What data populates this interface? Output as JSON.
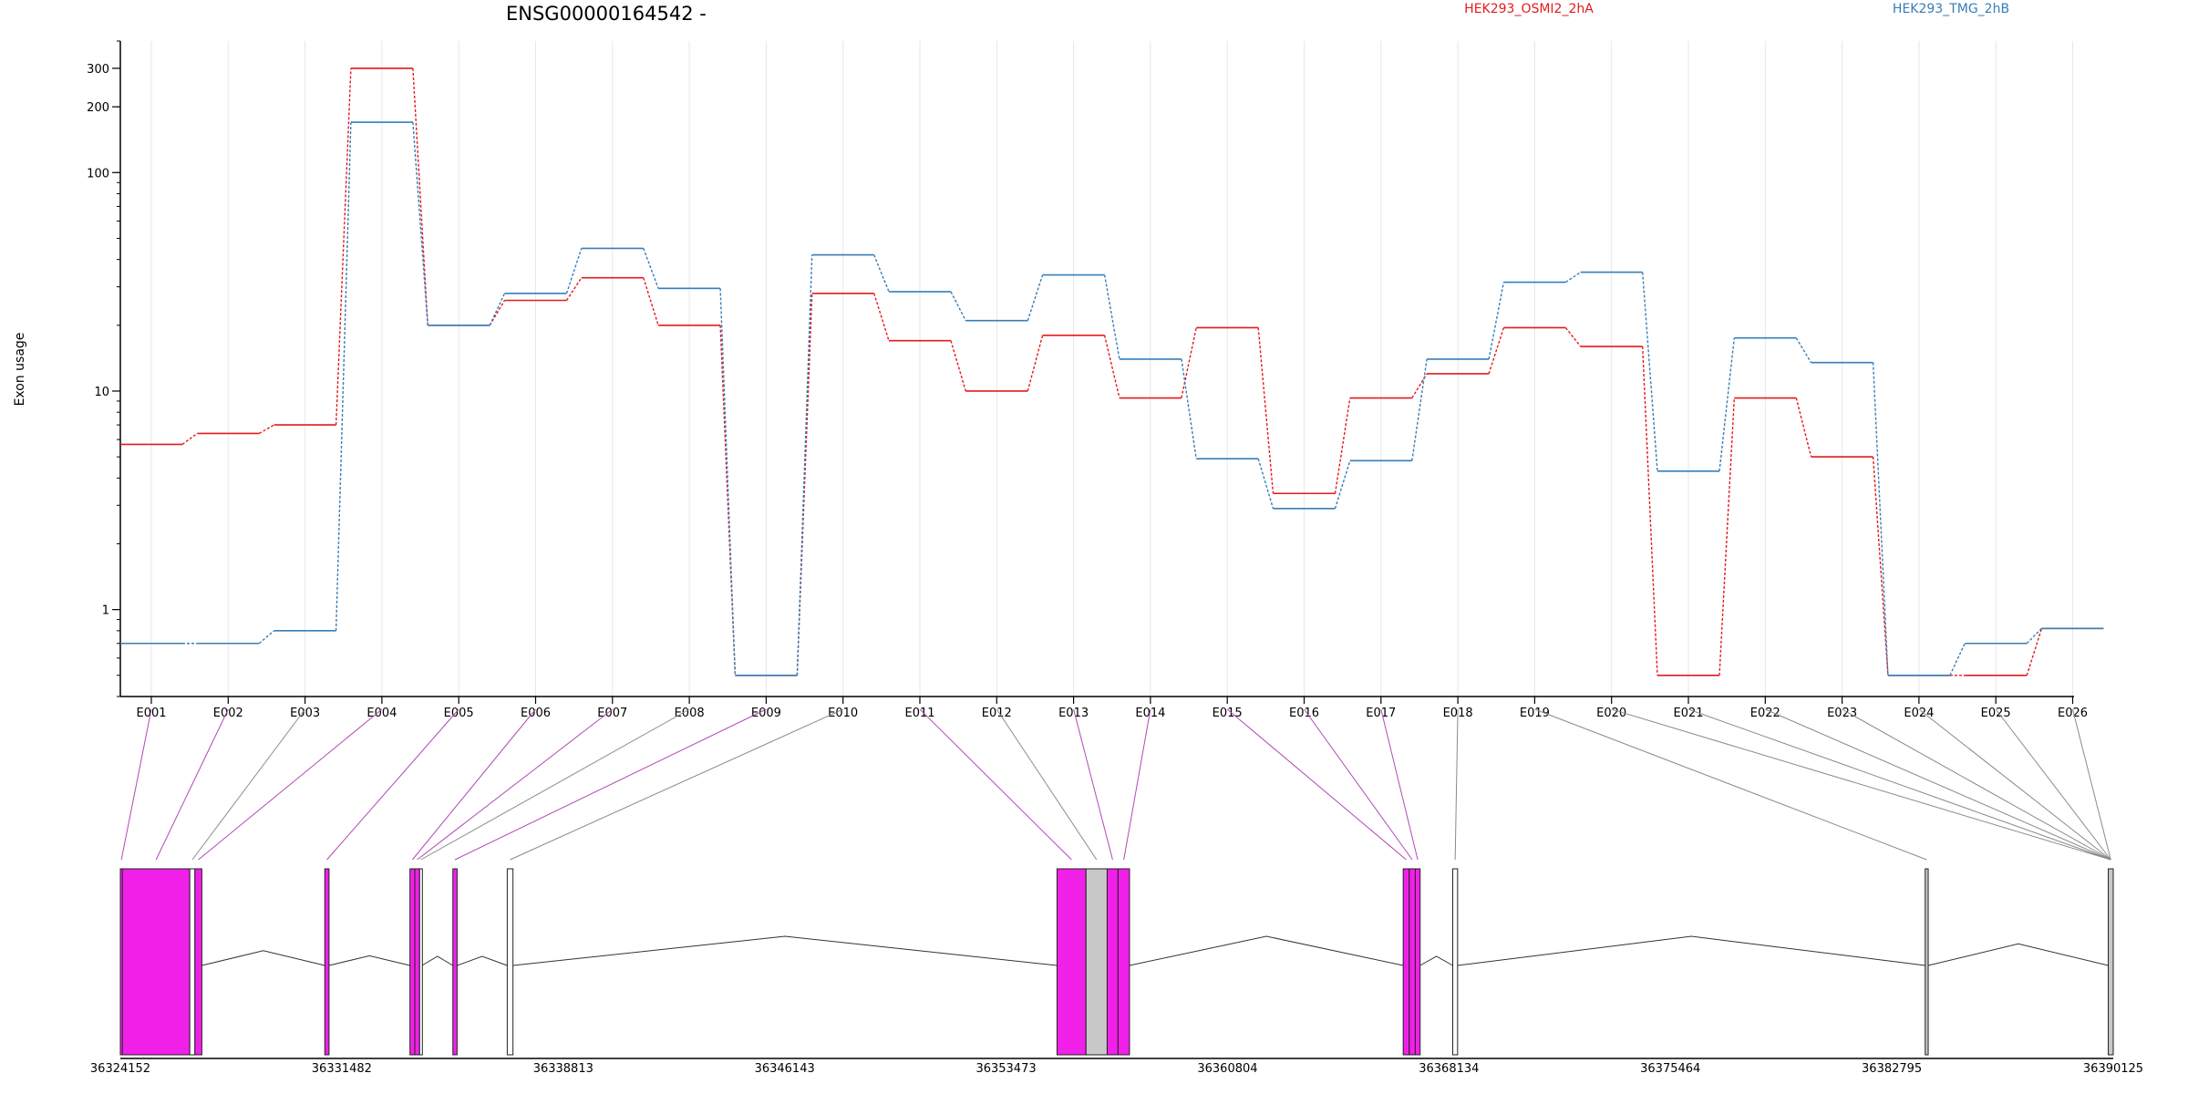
{
  "chart_data": {
    "type": "line",
    "title": "ENSG00000164542 -",
    "ylabel": "Exon usage",
    "xlabel": "",
    "y_scale": "log",
    "ylim": [
      0.4,
      400
    ],
    "y_ticks": [
      {
        "value": 1,
        "label": "1"
      },
      {
        "value": 10,
        "label": "10"
      },
      {
        "value": 100,
        "label": "100"
      },
      {
        "value": 200,
        "label": "200"
      },
      {
        "value": 300,
        "label": "300"
      }
    ],
    "legend_placement": "top",
    "categories": [
      "E001",
      "E002",
      "E003",
      "E004",
      "E005",
      "E006",
      "E007",
      "E008",
      "E009",
      "E010",
      "E011",
      "E012",
      "E013",
      "E014",
      "E015",
      "E016",
      "E017",
      "E018",
      "E019",
      "E020",
      "E021",
      "E022",
      "E023",
      "E024",
      "E025",
      "E026"
    ],
    "series": [
      {
        "name": "HEK293_OSMI2_2hA",
        "color": "#e41a1c",
        "values": [
          5.7,
          6.4,
          7.0,
          300,
          20,
          26,
          33,
          20,
          0.5,
          28,
          17,
          10,
          18,
          9.3,
          19.5,
          3.4,
          9.3,
          12,
          19.5,
          16,
          0.5,
          9.3,
          5.0,
          0.5,
          0.5,
          0.82
        ]
      },
      {
        "name": "HEK293_TMG_2hB",
        "color": "#377eb8",
        "values": [
          0.7,
          0.7,
          0.8,
          170,
          20,
          28,
          45,
          29.5,
          0.5,
          42,
          28.5,
          21,
          34,
          14,
          4.9,
          2.9,
          4.8,
          14,
          31.5,
          35,
          4.3,
          17.5,
          13.5,
          0.5,
          0.7,
          0.82
        ]
      }
    ],
    "gene_model": {
      "coordinate_ticks": [
        "36324152",
        "36331482",
        "36338813",
        "36346143",
        "36353473",
        "36360804",
        "36368134",
        "36375464",
        "36382795",
        "36390125"
      ],
      "coord_range": [
        36324152,
        36390125
      ],
      "exon_color_colors": [
        "#f020e8",
        "#c8c8c8",
        "#ffffff"
      ],
      "exons": [
        {
          "id": "E001",
          "start": 36324152,
          "end": 36324220,
          "color": "magenta"
        },
        {
          "id": "E002",
          "start": 36324220,
          "end": 36326450,
          "color": "magenta"
        },
        {
          "id": "E003",
          "start": 36326450,
          "end": 36326620,
          "color": "white"
        },
        {
          "id": "E004",
          "start": 36326620,
          "end": 36326850,
          "color": "magenta"
        },
        {
          "id": "E005",
          "start": 36330920,
          "end": 36331060,
          "color": "magenta"
        },
        {
          "id": "E006",
          "start": 36333740,
          "end": 36333900,
          "color": "magenta"
        },
        {
          "id": "E007",
          "start": 36333900,
          "end": 36334060,
          "color": "magenta"
        },
        {
          "id": "E008",
          "start": 36334060,
          "end": 36334140,
          "color": "white"
        },
        {
          "id": "E009",
          "start": 36335160,
          "end": 36335300,
          "color": "magenta"
        },
        {
          "id": "E010",
          "start": 36336960,
          "end": 36337150,
          "color": "white"
        },
        {
          "id": "E011",
          "start": 36355160,
          "end": 36356120,
          "color": "magenta"
        },
        {
          "id": "E012",
          "start": 36356120,
          "end": 36356820,
          "color": "grey"
        },
        {
          "id": "E013",
          "start": 36356820,
          "end": 36357180,
          "color": "magenta"
        },
        {
          "id": "E014",
          "start": 36357180,
          "end": 36357560,
          "color": "magenta"
        },
        {
          "id": "E015",
          "start": 36366620,
          "end": 36366820,
          "color": "magenta"
        },
        {
          "id": "E016",
          "start": 36366820,
          "end": 36367020,
          "color": "magenta"
        },
        {
          "id": "E017",
          "start": 36367020,
          "end": 36367180,
          "color": "magenta"
        },
        {
          "id": "E018",
          "start": 36368260,
          "end": 36368420,
          "color": "white"
        },
        {
          "id": "E019",
          "start": 36383900,
          "end": 36384000,
          "color": "grey"
        },
        {
          "id": "E020",
          "start": 36389960,
          "end": 36390125,
          "color": "grey"
        }
      ]
    }
  }
}
